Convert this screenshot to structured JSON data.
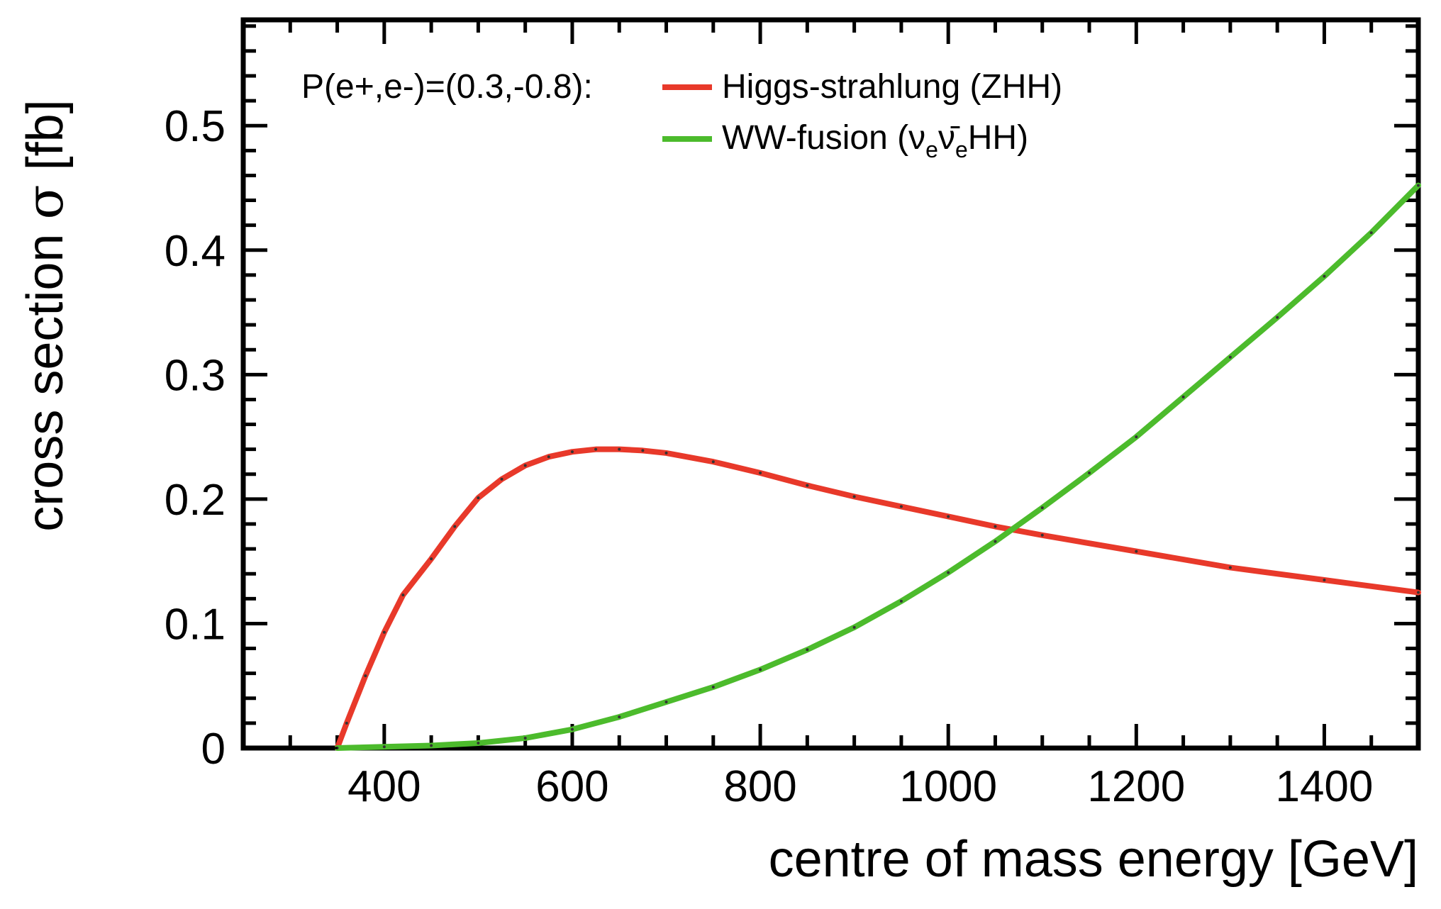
{
  "chart_data": {
    "type": "line",
    "title": "",
    "xlabel": "centre of mass energy [GeV]",
    "ylabel_text": "cross section ",
    "ylabel_symbol": "σ",
    "ylabel_unit": " [fb]",
    "xlim": [
      250,
      1500
    ],
    "ylim": [
      0,
      0.585
    ],
    "x_ticks": [
      400,
      600,
      800,
      1000,
      1200,
      1400
    ],
    "x_tick_labels": [
      "400",
      "600",
      "800",
      "1000",
      "1200",
      "1400"
    ],
    "y_ticks": [
      0,
      0.1,
      0.2,
      0.3,
      0.4,
      0.5
    ],
    "y_tick_labels": [
      "0",
      "0.1",
      "0.2",
      "0.3",
      "0.4",
      "0.5"
    ],
    "grid": false,
    "legend_position": "top-left",
    "legend_header": "P(e+,e-)=(0.3,-0.8):",
    "series": [
      {
        "name": "Higgs-strahlung (ZHH)",
        "color": "#e8392a",
        "x": [
          350,
          360,
          380,
          400,
          420,
          450,
          475,
          500,
          525,
          550,
          575,
          600,
          625,
          650,
          675,
          700,
          750,
          800,
          850,
          900,
          950,
          1000,
          1050,
          1100,
          1200,
          1300,
          1400,
          1500
        ],
        "y": [
          0,
          0.02,
          0.058,
          0.093,
          0.123,
          0.152,
          0.178,
          0.201,
          0.216,
          0.227,
          0.234,
          0.238,
          0.24,
          0.24,
          0.239,
          0.237,
          0.23,
          0.221,
          0.211,
          0.202,
          0.194,
          0.186,
          0.178,
          0.171,
          0.158,
          0.145,
          0.135,
          0.125
        ]
      },
      {
        "name": "WW-fusion (ν_e ν̄_e HH)",
        "color": "#4cbb2c",
        "x": [
          350,
          400,
          450,
          500,
          550,
          600,
          650,
          700,
          750,
          800,
          850,
          900,
          950,
          1000,
          1050,
          1100,
          1150,
          1200,
          1250,
          1300,
          1350,
          1400,
          1450,
          1500
        ],
        "y": [
          0,
          0.001,
          0.002,
          0.004,
          0.008,
          0.015,
          0.025,
          0.037,
          0.049,
          0.063,
          0.079,
          0.097,
          0.118,
          0.141,
          0.166,
          0.193,
          0.221,
          0.25,
          0.282,
          0.314,
          0.346,
          0.379,
          0.414,
          0.452
        ]
      }
    ],
    "legend_entries": {
      "higgs_strahlung": "Higgs-strahlung (ZHH)",
      "ww_fusion_prefix": "WW-fusion (",
      "nu": "ν",
      "sub_e": "e",
      "nubar": "ν̄",
      "ww_fusion_suffix": "HH)"
    }
  }
}
